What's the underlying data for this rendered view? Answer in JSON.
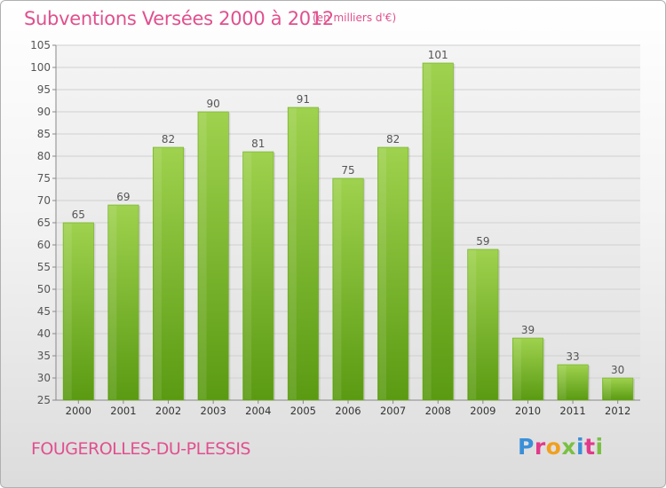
{
  "header": {
    "title": "Subventions Versées 2000 à 2012",
    "unit_note": "(en milliers d'€)"
  },
  "footer": {
    "commune": "FOUGEROLLES-DU-PLESSIS",
    "logo_letters": [
      "P",
      "r",
      "o",
      "x",
      "i",
      "t",
      "i"
    ],
    "logo_colors": [
      "#3a8fd8",
      "#e23a8a",
      "#f0a020",
      "#7ac043",
      "#3a8fd8",
      "#e23a8a",
      "#7ac043"
    ]
  },
  "chart_data": {
    "type": "bar",
    "title": "Subventions Versées 2000 à 2012",
    "subtitle": "(en milliers d'€)",
    "xlabel": "",
    "ylabel": "",
    "categories": [
      "2000",
      "2001",
      "2002",
      "2003",
      "2004",
      "2005",
      "2006",
      "2007",
      "2008",
      "2009",
      "2010",
      "2011",
      "2012"
    ],
    "values": [
      65,
      69,
      82,
      90,
      81,
      91,
      75,
      82,
      101,
      59,
      39,
      33,
      30
    ],
    "ylim": [
      25,
      105
    ],
    "yticks": [
      25,
      30,
      35,
      40,
      45,
      50,
      55,
      60,
      65,
      70,
      75,
      80,
      85,
      90,
      95,
      100,
      105
    ],
    "grid": true,
    "legend": "none",
    "colors": {
      "bar_top": "#9fd24e",
      "bar_bottom": "#5a9a12",
      "grid": "#d0d0d0",
      "text": "#555555",
      "accent": "#e0508e"
    }
  }
}
